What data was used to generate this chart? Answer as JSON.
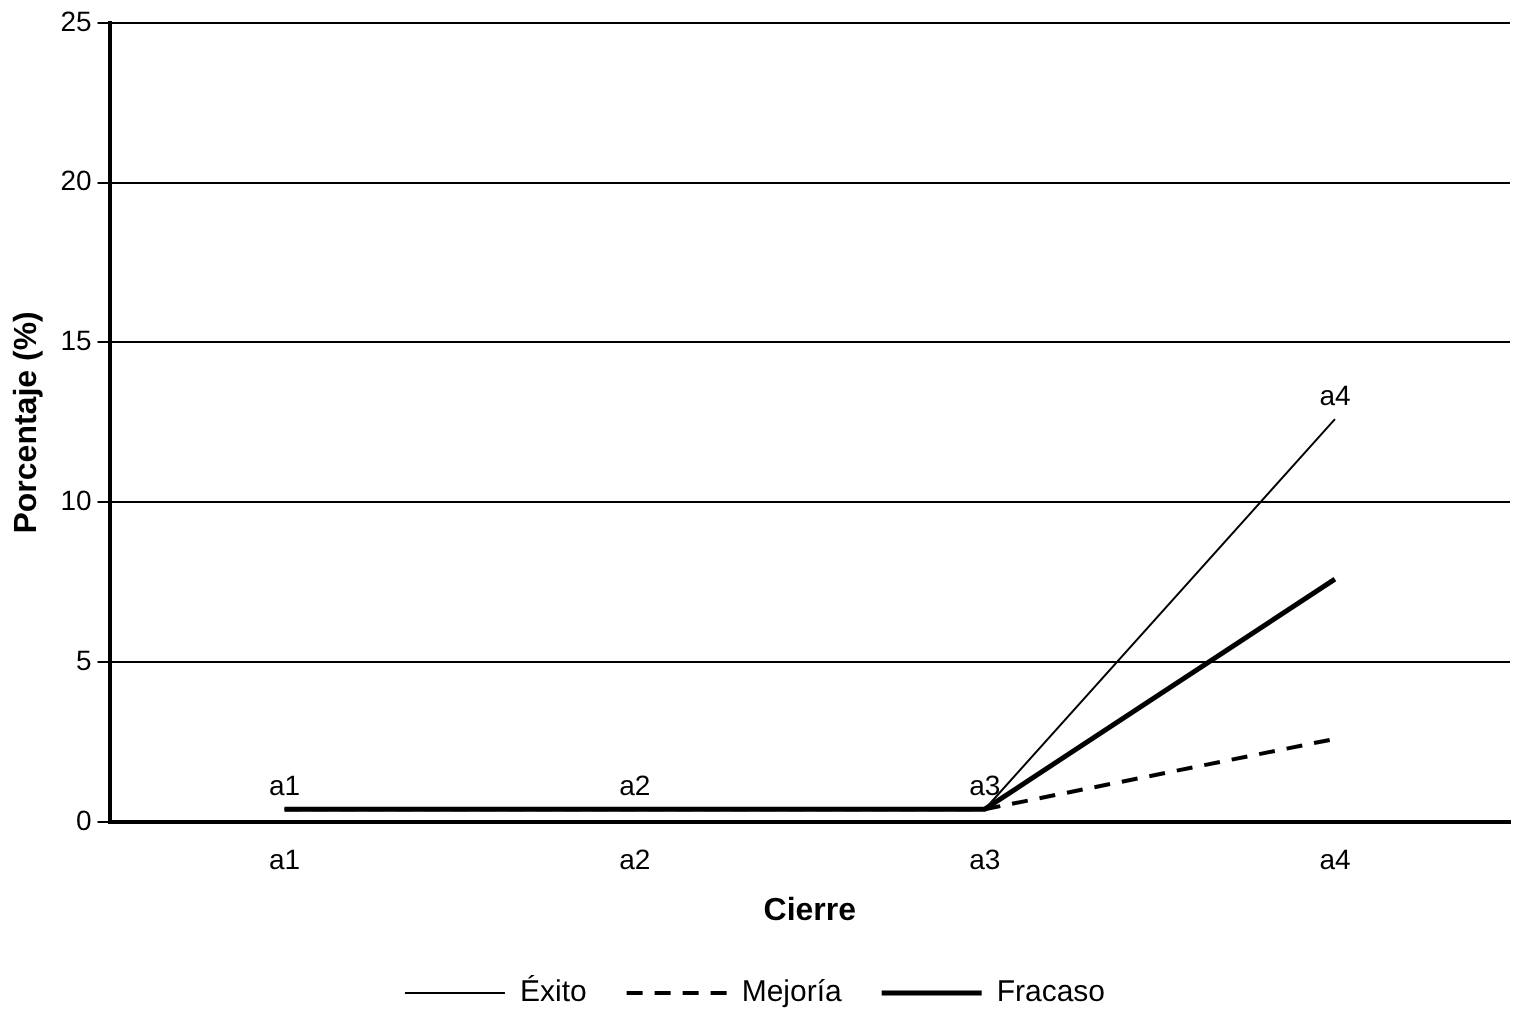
{
  "chart_data": {
    "type": "line",
    "xlabel": "Cierre",
    "ylabel": "Porcentaje (%)",
    "categories": [
      "a1",
      "a2",
      "a3",
      "a4"
    ],
    "series": [
      {
        "name": "Éxito",
        "color": "#000000",
        "line_style": "solid",
        "values": [
          0.4,
          0.4,
          0.4,
          12.6
        ]
      },
      {
        "name": "Mejoría",
        "color": "#000000",
        "line_style": "dashed",
        "values": [
          0.4,
          0.4,
          0.4,
          2.6
        ]
      },
      {
        "name": "Fracaso",
        "color": "#000000",
        "line_style": "solid",
        "values": [
          0.4,
          0.4,
          0.4,
          7.6
        ]
      }
    ],
    "annotations": [
      {
        "text": "a1",
        "x": "a1",
        "y": 0.4
      },
      {
        "text": "a2",
        "x": "a2",
        "y": 0.4
      },
      {
        "text": "a3",
        "x": "a3",
        "y": 0.4
      },
      {
        "text": "a4",
        "x": "a4",
        "y": 12.6
      }
    ],
    "ylim": [
      0,
      25
    ],
    "yticks": [
      0,
      5,
      10,
      15,
      20,
      25
    ],
    "grid": "y",
    "legend": "bottom",
    "marker": "none"
  }
}
